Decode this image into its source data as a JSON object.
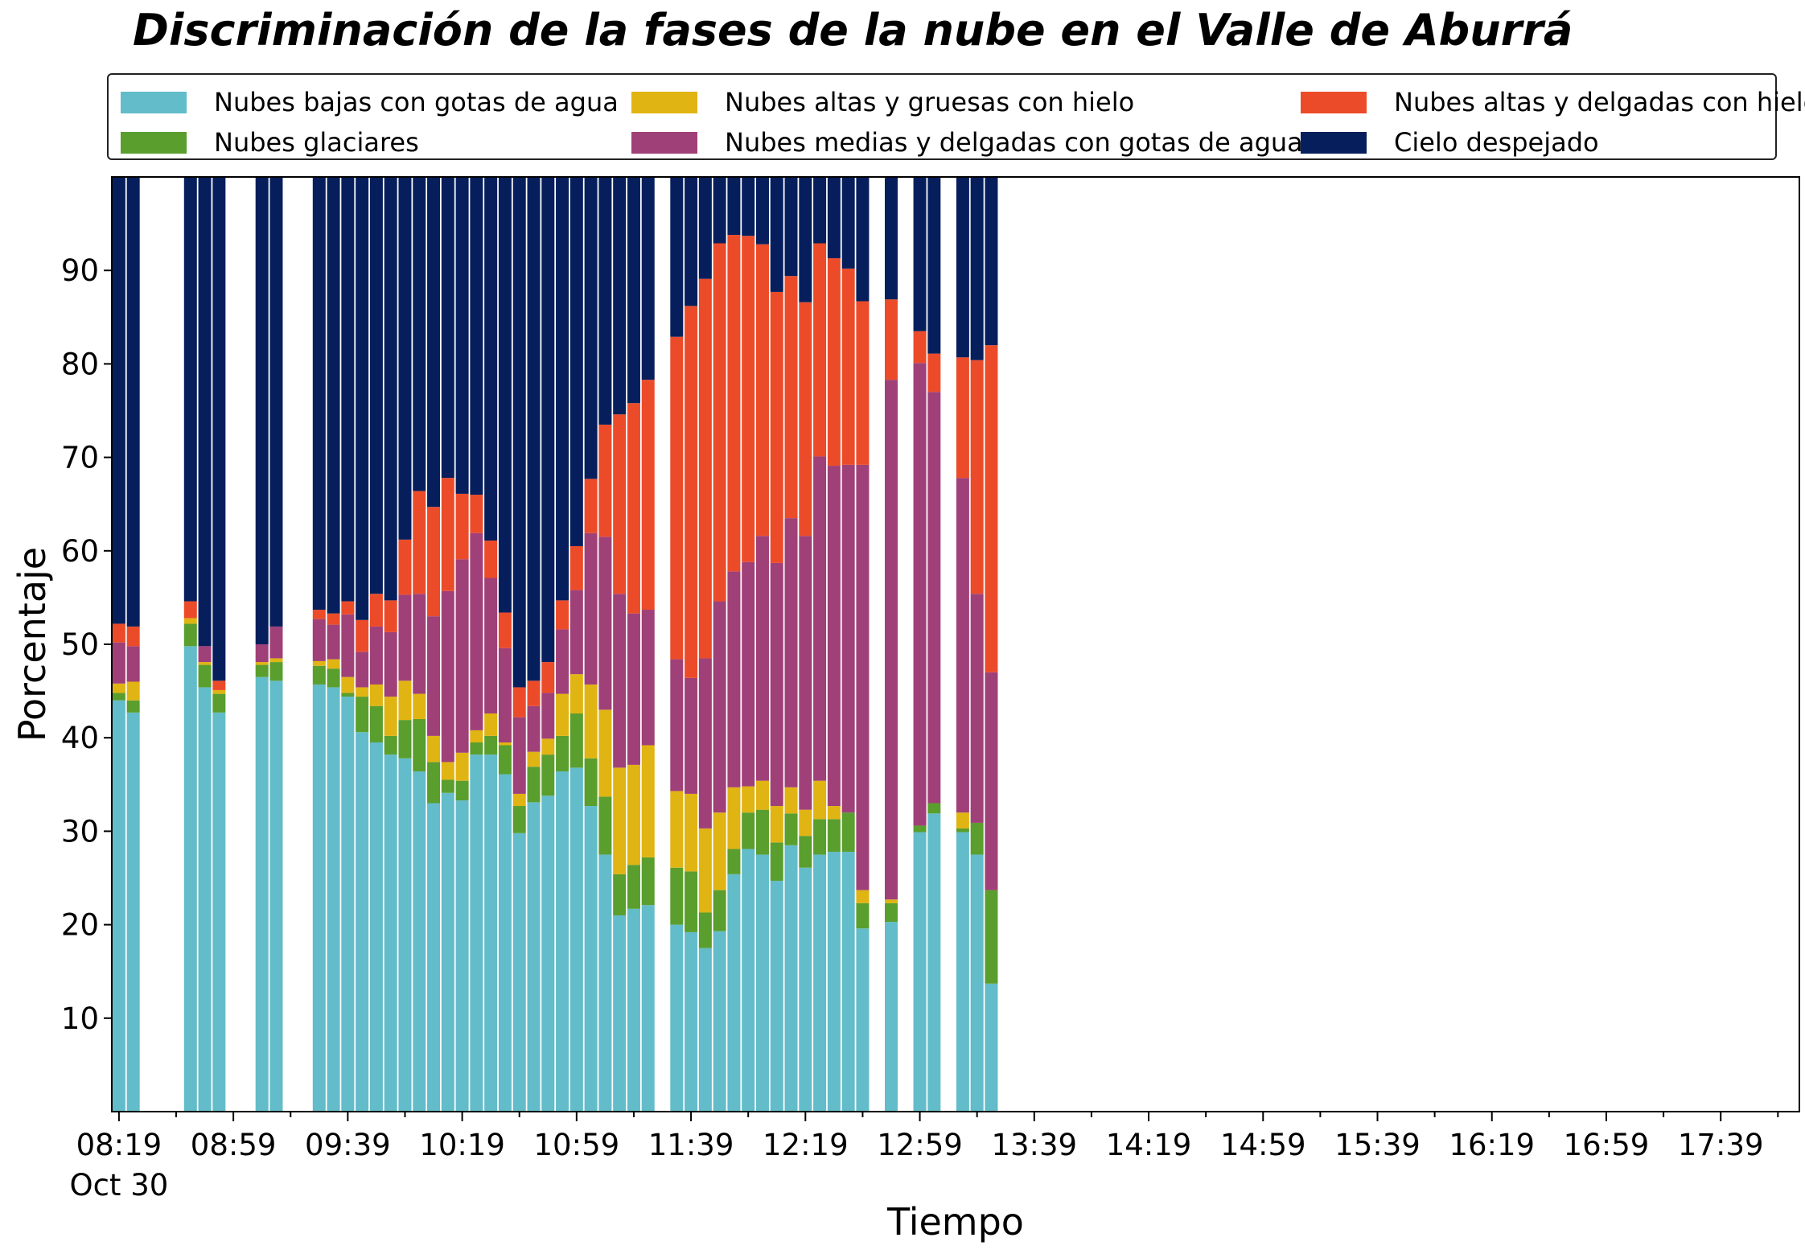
{
  "chart_data": {
    "type": "bar",
    "stacked": true,
    "title": "Discriminación de la fases de la nube en el Valle de Aburrá",
    "xlabel": "Tiempo",
    "ylabel": "Porcentaje",
    "ylim": [
      0,
      100
    ],
    "yticks": [
      10,
      20,
      30,
      40,
      50,
      60,
      70,
      80,
      90
    ],
    "x_tick_labels": [
      "08:19",
      "08:59",
      "09:39",
      "10:19",
      "10:59",
      "11:39",
      "12:19",
      "12:59",
      "13:39",
      "14:19",
      "14:59",
      "15:39",
      "16:19",
      "16:59",
      "17:39"
    ],
    "x_date_label": "Oct 30",
    "legend_position": "top",
    "grid": false,
    "categories": [
      "08:19",
      "08:24",
      "08:29",
      "08:34",
      "08:39",
      "08:44",
      "08:49",
      "08:54",
      "08:59",
      "09:04",
      "09:09",
      "09:14",
      "09:19",
      "09:24",
      "09:29",
      "09:34",
      "09:39",
      "09:44",
      "09:49",
      "09:54",
      "09:59",
      "10:04",
      "10:09",
      "10:14",
      "10:19",
      "10:24",
      "10:29",
      "10:34",
      "10:39",
      "10:44",
      "10:49",
      "10:54",
      "10:59",
      "11:04",
      "11:09",
      "11:14",
      "11:19",
      "11:24",
      "11:29",
      "11:34",
      "11:39",
      "11:44",
      "11:49",
      "11:54",
      "11:59",
      "12:04",
      "12:09",
      "12:14",
      "12:19",
      "12:24",
      "12:29",
      "12:34",
      "12:39",
      "12:44",
      "12:49",
      "12:54",
      "12:59",
      "13:04",
      "13:09",
      "13:14",
      "13:19",
      "13:24",
      "13:29",
      "13:34",
      "13:39",
      "13:44",
      "13:49",
      "13:54",
      "13:59",
      "14:04",
      "14:09",
      "14:14",
      "14:19",
      "14:24",
      "14:29",
      "14:34",
      "14:39",
      "14:44",
      "14:49",
      "14:54",
      "14:59",
      "15:04",
      "15:09",
      "15:14",
      "15:19",
      "15:24",
      "15:29",
      "15:34",
      "15:39",
      "15:44",
      "15:49",
      "15:54",
      "15:59",
      "16:04",
      "16:09",
      "16:14",
      "16:19",
      "16:24",
      "16:29",
      "16:34",
      "16:39",
      "16:44",
      "16:49",
      "16:54",
      "16:59",
      "17:04",
      "17:09",
      "17:14",
      "17:19",
      "17:24",
      "17:29",
      "17:34",
      "17:39",
      "17:44",
      "17:49",
      "17:54",
      "17:59",
      "18:04"
    ],
    "bars": [
      {
        "time": "08:19",
        "v": [
          44.0,
          0.8,
          1.0,
          4.4,
          2.0
        ]
      },
      {
        "time": "08:24",
        "v": [
          42.7,
          1.3,
          2.0,
          3.8,
          2.1
        ]
      },
      {
        "time": "08:44",
        "v": [
          49.8,
          2.4,
          0.6,
          0.0,
          1.8
        ]
      },
      {
        "time": "08:49",
        "v": [
          45.4,
          2.4,
          0.3,
          1.7,
          0.0
        ]
      },
      {
        "time": "08:54",
        "v": [
          42.7,
          2.0,
          0.4,
          0.0,
          1.0
        ]
      },
      {
        "time": "09:09",
        "v": [
          46.5,
          1.3,
          0.3,
          1.9,
          0.0
        ]
      },
      {
        "time": "09:14",
        "v": [
          46.1,
          2.0,
          0.4,
          3.4,
          0.0
        ]
      },
      {
        "time": "09:29",
        "v": [
          45.7,
          2.0,
          0.5,
          4.5,
          1.0
        ]
      },
      {
        "time": "09:34",
        "v": [
          45.4,
          2.0,
          1.0,
          3.7,
          1.2
        ]
      },
      {
        "time": "09:39",
        "v": [
          44.4,
          0.4,
          1.7,
          6.7,
          1.4
        ]
      },
      {
        "time": "09:44",
        "v": [
          40.6,
          3.8,
          1.0,
          3.8,
          3.4
        ]
      },
      {
        "time": "09:49",
        "v": [
          39.5,
          3.9,
          2.3,
          6.2,
          3.5
        ]
      },
      {
        "time": "09:54",
        "v": [
          38.2,
          2.0,
          4.2,
          6.9,
          3.4
        ]
      },
      {
        "time": "09:59",
        "v": [
          37.8,
          4.1,
          4.2,
          9.2,
          5.9
        ]
      },
      {
        "time": "10:04",
        "v": [
          36.4,
          5.6,
          2.7,
          10.7,
          11.0
        ]
      },
      {
        "time": "10:09",
        "v": [
          33.0,
          4.4,
          2.8,
          12.8,
          11.7
        ]
      },
      {
        "time": "10:14",
        "v": [
          34.1,
          1.4,
          1.9,
          18.3,
          12.1
        ]
      },
      {
        "time": "10:19",
        "v": [
          33.3,
          2.1,
          3.0,
          20.7,
          7.0
        ]
      },
      {
        "time": "10:24",
        "v": [
          38.2,
          1.3,
          1.3,
          21.1,
          4.1
        ]
      },
      {
        "time": "10:29",
        "v": [
          38.2,
          2.0,
          2.4,
          14.5,
          4.0
        ]
      },
      {
        "time": "10:34",
        "v": [
          36.1,
          3.1,
          0.3,
          10.1,
          3.8
        ]
      },
      {
        "time": "10:39",
        "v": [
          29.8,
          2.9,
          1.3,
          8.2,
          3.2
        ]
      },
      {
        "time": "10:44",
        "v": [
          33.1,
          3.8,
          1.6,
          4.9,
          2.7
        ]
      },
      {
        "time": "10:49",
        "v": [
          33.8,
          4.4,
          1.7,
          4.9,
          3.3
        ]
      },
      {
        "time": "10:54",
        "v": [
          36.4,
          3.8,
          4.5,
          6.9,
          3.1
        ]
      },
      {
        "time": "10:59",
        "v": [
          36.8,
          5.8,
          4.2,
          9.0,
          4.7
        ]
      },
      {
        "time": "11:04",
        "v": [
          32.7,
          5.1,
          7.9,
          16.2,
          5.8
        ]
      },
      {
        "time": "11:09",
        "v": [
          27.5,
          6.2,
          9.3,
          18.5,
          12.0
        ]
      },
      {
        "time": "11:14",
        "v": [
          21.0,
          4.4,
          11.4,
          18.6,
          19.2
        ]
      },
      {
        "time": "11:19",
        "v": [
          21.7,
          4.7,
          10.7,
          16.2,
          22.5
        ]
      },
      {
        "time": "11:24",
        "v": [
          22.1,
          5.1,
          12.0,
          14.5,
          24.6
        ]
      },
      {
        "time": "11:34",
        "v": [
          20.0,
          6.1,
          8.2,
          14.1,
          34.5
        ]
      },
      {
        "time": "11:39",
        "v": [
          19.2,
          6.5,
          8.3,
          12.4,
          39.8
        ]
      },
      {
        "time": "11:44",
        "v": [
          17.5,
          3.8,
          9.0,
          18.2,
          40.6
        ]
      },
      {
        "time": "11:49",
        "v": [
          19.3,
          4.4,
          8.3,
          22.6,
          38.3
        ]
      },
      {
        "time": "11:54",
        "v": [
          25.4,
          2.7,
          6.6,
          23.1,
          36.0
        ]
      },
      {
        "time": "11:59",
        "v": [
          28.1,
          3.9,
          2.8,
          24.0,
          34.9
        ]
      },
      {
        "time": "12:04",
        "v": [
          27.5,
          4.8,
          3.1,
          26.2,
          31.2
        ]
      },
      {
        "time": "12:09",
        "v": [
          24.7,
          4.1,
          3.9,
          26.0,
          29.0
        ]
      },
      {
        "time": "12:14",
        "v": [
          28.5,
          3.4,
          2.8,
          28.8,
          25.9
        ]
      },
      {
        "time": "12:19",
        "v": [
          26.1,
          3.4,
          2.8,
          29.3,
          25.0
        ]
      },
      {
        "time": "12:24",
        "v": [
          27.5,
          3.8,
          4.1,
          34.7,
          22.8
        ]
      },
      {
        "time": "12:29",
        "v": [
          27.8,
          3.5,
          1.4,
          36.4,
          22.2
        ]
      },
      {
        "time": "12:34",
        "v": [
          27.8,
          4.2,
          0.0,
          37.2,
          21.0
        ]
      },
      {
        "time": "12:39",
        "v": [
          19.6,
          2.7,
          1.4,
          45.5,
          17.5
        ]
      },
      {
        "time": "12:49",
        "v": [
          20.3,
          2.0,
          0.4,
          55.6,
          8.6
        ]
      },
      {
        "time": "12:59",
        "v": [
          29.9,
          0.7,
          0.0,
          49.5,
          3.4
        ]
      },
      {
        "time": "13:04",
        "v": [
          31.9,
          1.1,
          0.0,
          44.0,
          4.1
        ]
      },
      {
        "time": "13:14",
        "v": [
          29.9,
          0.4,
          1.7,
          35.8,
          12.9
        ]
      },
      {
        "time": "13:19",
        "v": [
          27.5,
          3.4,
          0.0,
          24.5,
          25.0
        ]
      },
      {
        "time": "13:24",
        "v": [
          13.7,
          10.0,
          0.0,
          23.3,
          35.0
        ]
      }
    ],
    "series": [
      {
        "name": "Nubes bajas con gotas de agua",
        "color": "#63bcc9",
        "index": 0
      },
      {
        "name": "Nubes glaciares",
        "color": "#5a9e2e",
        "index": 1
      },
      {
        "name": "Nubes altas y gruesas con hielo",
        "color": "#e0b413",
        "index": 2
      },
      {
        "name": "Nubes medias y delgadas con gotas de agua",
        "color": "#a04078",
        "index": 3
      },
      {
        "name": "Nubes altas y delgadas con hielo",
        "color": "#ec4b2a",
        "index": 4
      },
      {
        "name": "Cielo despejado",
        "color": "#061f5c",
        "index": 5
      }
    ]
  }
}
